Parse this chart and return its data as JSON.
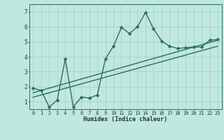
{
  "title": "",
  "xlabel": "Humidex (Indice chaleur)",
  "bg_color": "#c0e8e0",
  "line_color": "#2a6e62",
  "grid_color": "#9ecec6",
  "xlim": [
    -0.5,
    23.5
  ],
  "ylim": [
    0.5,
    7.5
  ],
  "xticks": [
    0,
    1,
    2,
    3,
    4,
    5,
    6,
    7,
    8,
    9,
    10,
    11,
    12,
    13,
    14,
    15,
    16,
    17,
    18,
    19,
    20,
    21,
    22,
    23
  ],
  "yticks": [
    1,
    2,
    3,
    4,
    5,
    6,
    7
  ],
  "curve_x": [
    0,
    1,
    2,
    3,
    4,
    5,
    6,
    7,
    8,
    9,
    10,
    11,
    12,
    13,
    14,
    15,
    16,
    17,
    18,
    19,
    20,
    21,
    22,
    23
  ],
  "curve_y": [
    1.9,
    1.75,
    0.65,
    1.1,
    3.85,
    0.65,
    1.3,
    1.25,
    1.45,
    3.85,
    4.7,
    5.95,
    5.55,
    6.0,
    6.95,
    5.85,
    5.05,
    4.7,
    4.55,
    4.6,
    4.65,
    4.65,
    5.1,
    5.15
  ],
  "trend1_x": [
    0,
    23
  ],
  "trend1_y": [
    1.6,
    5.1
  ],
  "trend2_x": [
    0,
    23
  ],
  "trend2_y": [
    1.3,
    4.7
  ],
  "marker_size": 2.5,
  "line_width": 1.0,
  "tick_fontsize": 5.0,
  "xlabel_fontsize": 6.0
}
